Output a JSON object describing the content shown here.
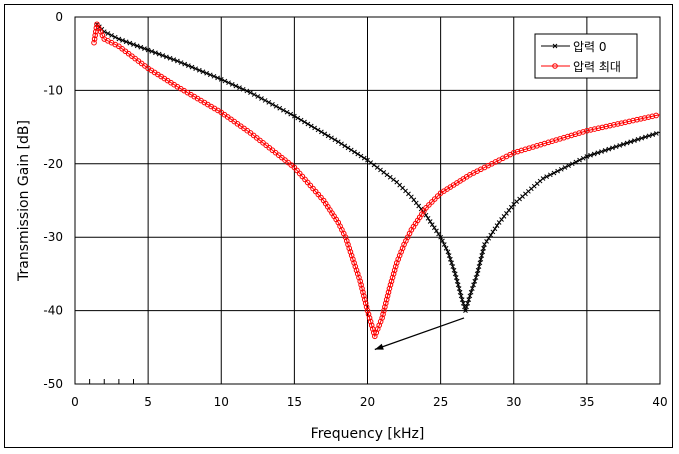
{
  "chart_data": {
    "type": "line",
    "title": "",
    "xlabel": "Frequency [kHz]",
    "ylabel": "Transmission Gain [dB]",
    "xlim": [
      0,
      40
    ],
    "ylim": [
      -50,
      0
    ],
    "xticks": [
      0,
      5,
      10,
      15,
      20,
      25,
      30,
      35,
      40
    ],
    "yticks": [
      0,
      -10,
      -20,
      -30,
      -40,
      -50
    ],
    "grid": true,
    "legend_position": "top-right",
    "series": [
      {
        "name": "압력 0",
        "color": "#000000",
        "marker": "x",
        "x": [
          1.5,
          2,
          3,
          5,
          7,
          10,
          12,
          15,
          18,
          20,
          22,
          23,
          24,
          25,
          25.5,
          26,
          26.4,
          26.7,
          27,
          27.5,
          28,
          29,
          30,
          32,
          35,
          38,
          40
        ],
        "y": [
          -1,
          -2,
          -3,
          -4.5,
          -6,
          -8.5,
          -10.3,
          -13.5,
          -17,
          -19.5,
          -22.5,
          -24.5,
          -27,
          -30,
          -32,
          -35,
          -38,
          -40,
          -38,
          -35,
          -31,
          -28,
          -25.5,
          -22,
          -19,
          -17,
          -15.7
        ]
      },
      {
        "name": "압력 최대",
        "color": "#ff0000",
        "marker": "o",
        "x": [
          1.3,
          1.5,
          2,
          3,
          5,
          7,
          10,
          12,
          15,
          17,
          18,
          18.5,
          19,
          19.5,
          20,
          20.5,
          21,
          21.5,
          22,
          22.5,
          23,
          24,
          25,
          27,
          30,
          35,
          40
        ],
        "y": [
          -3.5,
          -1,
          -3,
          -4,
          -7,
          -9.5,
          -13,
          -15.8,
          -20.5,
          -25,
          -28,
          -30,
          -33,
          -36,
          -40,
          -43.5,
          -41,
          -37,
          -33.5,
          -31,
          -29,
          -26,
          -24,
          -21.5,
          -18.5,
          -15.5,
          -13.3
        ]
      }
    ],
    "annotations": [
      {
        "type": "arrow",
        "from": [
          26.6,
          -41
        ],
        "to": [
          20.5,
          -45.3
        ]
      }
    ]
  }
}
